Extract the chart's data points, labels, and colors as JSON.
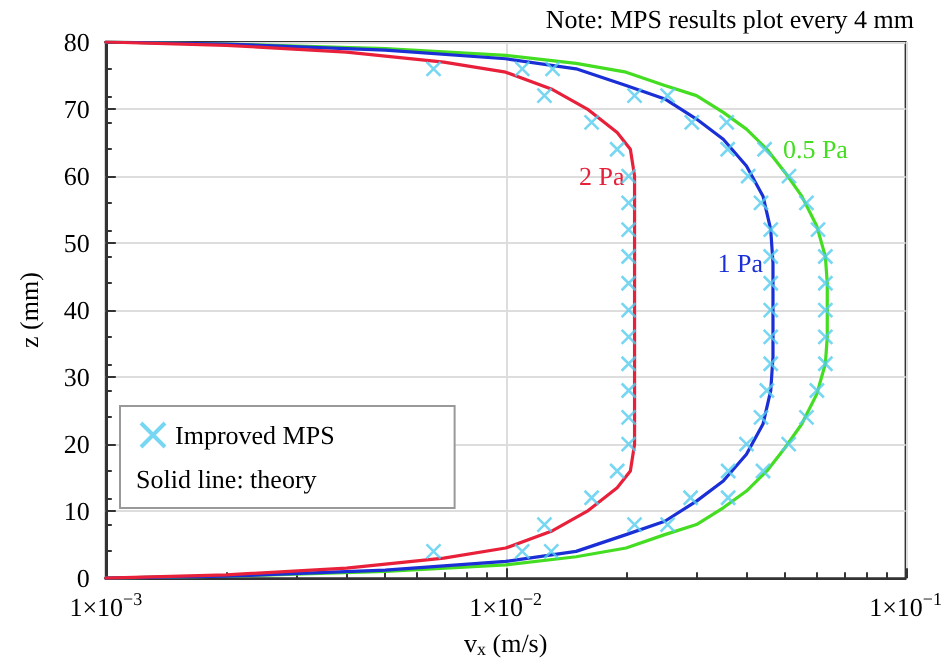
{
  "chart_data": {
    "type": "line",
    "xlabel": "v$_{x}$ (m/s)",
    "ylabel": "z (mm)",
    "log": "x",
    "xlim": [
      0.001,
      0.1
    ],
    "xticks": [
      {
        "value": 0.001,
        "label": "1×10$^{−3}$"
      },
      {
        "value": 0.01,
        "label": "1×10$^{−2}$"
      },
      {
        "value": 0.1,
        "label": "1×10$^{−1}$"
      }
    ],
    "ylim": [
      0,
      80
    ],
    "yticks": [
      0,
      10,
      20,
      30,
      40,
      50,
      60,
      70,
      80
    ],
    "grid": true,
    "legend": "bottom left",
    "annotations": [
      "Note: MPS results plot every 4 mm",
      "Solid line: theory"
    ],
    "series": [
      {
        "name": "0.5 Pa",
        "color": "#44dd22",
        "marker": "none",
        "line_style": "solid",
        "x": [
          0.001,
          0.002,
          0.005,
          0.01,
          0.015,
          0.02,
          0.025,
          0.03,
          0.035,
          0.04,
          0.045,
          0.05,
          0.055,
          0.06,
          0.063,
          0.0637,
          0.0637,
          0.063,
          0.06,
          0.055,
          0.05,
          0.045,
          0.04,
          0.035,
          0.03,
          0.025,
          0.02,
          0.015,
          0.01,
          0.005,
          0.002,
          0.001
        ],
        "values": [
          0,
          0.3,
          1,
          2,
          3.2,
          4.5,
          6.5,
          8,
          10.5,
          13,
          16,
          19.5,
          23,
          27.5,
          32,
          36,
          44,
          48,
          52.5,
          57,
          60.5,
          64,
          67,
          69.5,
          72,
          73.5,
          75.5,
          76.8,
          78,
          79,
          79.7,
          80
        ]
      },
      {
        "name": "1 Pa",
        "color": "#1a2fd6",
        "marker": "none",
        "line_style": "solid",
        "x": [
          0.001,
          0.002,
          0.005,
          0.01,
          0.015,
          0.02,
          0.025,
          0.03,
          0.035,
          0.04,
          0.044,
          0.046,
          0.0466,
          0.0466,
          0.046,
          0.044,
          0.04,
          0.035,
          0.03,
          0.025,
          0.02,
          0.015,
          0.01,
          0.005,
          0.002,
          0.001
        ],
        "values": [
          0,
          0.3,
          1.2,
          2.5,
          4,
          6.5,
          8.5,
          11.5,
          14.5,
          18.5,
          23,
          28,
          33,
          47,
          52,
          57,
          61.5,
          65.5,
          68.5,
          71.5,
          73.5,
          76,
          77.5,
          78.8,
          79.7,
          80
        ]
      },
      {
        "name": "2 Pa",
        "color": "#e8203a",
        "marker": "none",
        "line_style": "solid",
        "x": [
          0.001,
          0.002,
          0.004,
          0.007,
          0.01,
          0.013,
          0.016,
          0.019,
          0.0205,
          0.021,
          0.021,
          0.0205,
          0.019,
          0.016,
          0.013,
          0.01,
          0.007,
          0.004,
          0.002,
          0.001
        ],
        "values": [
          0,
          0.5,
          1.5,
          3,
          4.5,
          7,
          10,
          13.5,
          16,
          20,
          60,
          64,
          66.5,
          70,
          73,
          75.5,
          77,
          78.5,
          79.5,
          80
        ]
      },
      {
        "name": "Improved MPS",
        "type": "scatter",
        "color": "#55ccee",
        "marker": "cross",
        "x": [
          0.0066,
          0.0125,
          0.0164,
          0.019,
          0.0203,
          0.0203,
          0.0203,
          0.0203,
          0.0203,
          0.0203,
          0.0203,
          0.0203,
          0.0203,
          0.0203,
          0.0203,
          0.019,
          0.0164,
          0.0125,
          0.0066,
          0.011,
          0.021,
          0.029,
          0.036,
          0.04,
          0.0435,
          0.045,
          0.046,
          0.046,
          0.046,
          0.046,
          0.046,
          0.046,
          0.0435,
          0.0404,
          0.0359,
          0.0292,
          0.021,
          0.011,
          0.013,
          0.0254,
          0.036,
          0.044,
          0.051,
          0.0565,
          0.06,
          0.063,
          0.063,
          0.063,
          0.063,
          0.063,
          0.0604,
          0.0565,
          0.0511,
          0.0444,
          0.0357,
          0.0254,
          0.0131
        ],
        "values": [
          4,
          8,
          12,
          16,
          20,
          24,
          28,
          32,
          36,
          40,
          44,
          48,
          52,
          56,
          60,
          64,
          68,
          72,
          76,
          4,
          8,
          12,
          16,
          20,
          24,
          28,
          32,
          36,
          40,
          44,
          48,
          52,
          56,
          60,
          64,
          68,
          72,
          76,
          4,
          8,
          12,
          16,
          20,
          24,
          28,
          32,
          36,
          40,
          44,
          48,
          52,
          56,
          60,
          64,
          68,
          72,
          76
        ]
      }
    ]
  }
}
